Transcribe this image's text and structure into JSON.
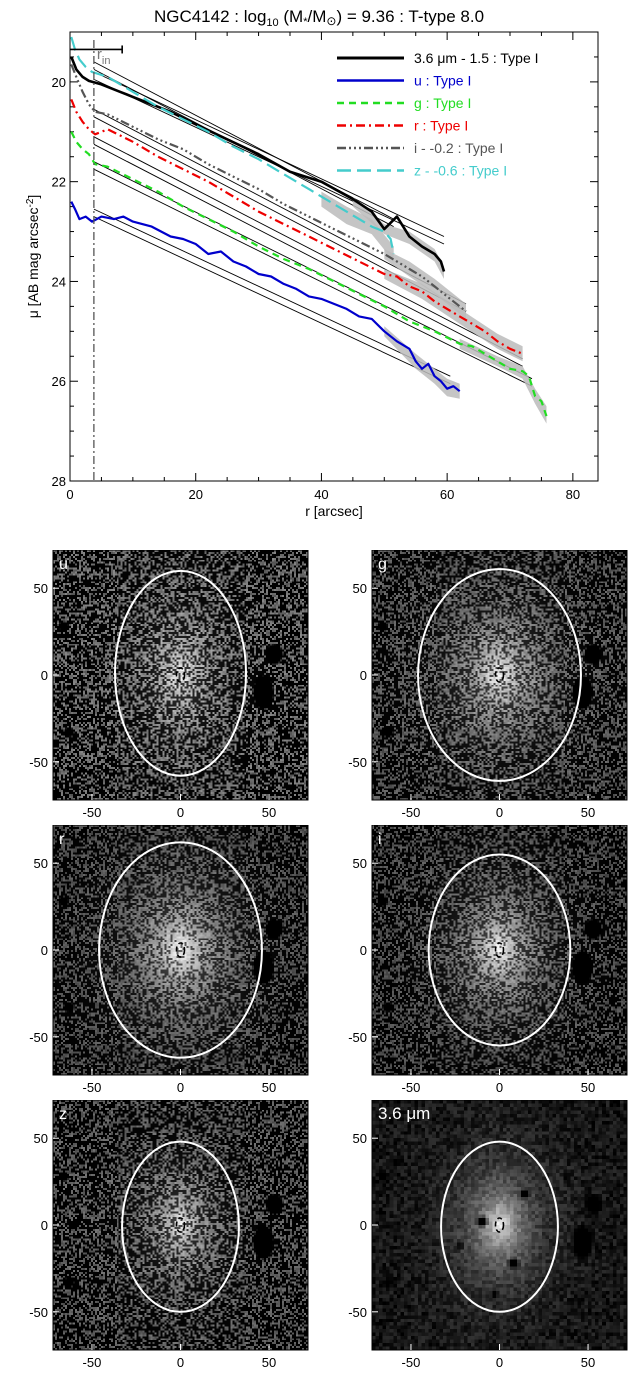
{
  "chart_data": [
    {
      "type": "line",
      "title_parts": [
        "NGC4142 : log",
        "10",
        " (M",
        "*",
        "/M",
        "⊙",
        ") = 9.36 : T-type 8.0"
      ],
      "xlabel": "r [arcsec]",
      "ylabel_parts": [
        "μ [AB mag arcsec",
        "-2",
        "]"
      ],
      "xlim": [
        0,
        84
      ],
      "ylim": [
        28,
        19
      ],
      "xticks": [
        0,
        20,
        40,
        60,
        80
      ],
      "yticks": [
        20,
        22,
        24,
        26,
        28
      ],
      "legend": "top-right",
      "r_in": {
        "label_main": "r",
        "label_sub": "in",
        "value": 3.8
      },
      "scale_bar": {
        "x": [
          0,
          8.3
        ],
        "y": 19.35
      },
      "series": [
        {
          "name": "3.6 μm - 1.5 : Type I",
          "color": "#000000",
          "dash": "",
          "width": 2.6,
          "points": [
            [
              0.2,
              19.5
            ],
            [
              1,
              19.75
            ],
            [
              2,
              19.9
            ],
            [
              3,
              19.98
            ],
            [
              5,
              20.05
            ],
            [
              8,
              20.2
            ],
            [
              10,
              20.3
            ],
            [
              13,
              20.45
            ],
            [
              16,
              20.6
            ],
            [
              20,
              20.85
            ],
            [
              25,
              21.15
            ],
            [
              30,
              21.45
            ],
            [
              35,
              21.8
            ],
            [
              40,
              22.0
            ],
            [
              45,
              22.35
            ],
            [
              48,
              22.6
            ],
            [
              50,
              22.95
            ],
            [
              52,
              22.7
            ],
            [
              54,
              23.1
            ],
            [
              56,
              23.3
            ],
            [
              58,
              23.45
            ],
            [
              59,
              23.6
            ],
            [
              59.5,
              23.8
            ]
          ],
          "band": [
            [
              45,
              22.3,
              22.5
            ],
            [
              50,
              22.85,
              23.05
            ],
            [
              54,
              23.0,
              23.25
            ],
            [
              58,
              23.35,
              23.6
            ],
            [
              59.5,
              23.7,
              23.95
            ]
          ],
          "fits": [
            [
              [
                3.8,
                19.8
              ],
              [
                59.5,
                23.1
              ]
            ],
            [
              [
                3.8,
                19.95
              ],
              [
                59.5,
                23.25
              ]
            ]
          ]
        },
        {
          "name": "u : Type I",
          "color": "#0000cc",
          "dash": "",
          "width": 2.2,
          "points": [
            [
              0.2,
              22.4
            ],
            [
              0.8,
              22.55
            ],
            [
              1.5,
              22.75
            ],
            [
              2.5,
              22.7
            ],
            [
              3.5,
              22.8
            ],
            [
              5,
              22.7
            ],
            [
              7,
              22.75
            ],
            [
              8.5,
              22.7
            ],
            [
              10,
              22.8
            ],
            [
              13,
              22.9
            ],
            [
              16,
              23.1
            ],
            [
              18,
              23.15
            ],
            [
              20,
              23.25
            ],
            [
              22,
              23.45
            ],
            [
              24,
              23.4
            ],
            [
              26,
              23.6
            ],
            [
              28,
              23.7
            ],
            [
              30,
              23.85
            ],
            [
              32,
              23.9
            ],
            [
              34,
              24.05
            ],
            [
              36,
              24.15
            ],
            [
              38,
              24.3
            ],
            [
              40,
              24.35
            ],
            [
              42,
              24.45
            ],
            [
              44,
              24.55
            ],
            [
              46,
              24.7
            ],
            [
              48,
              24.75
            ],
            [
              50,
              25.0
            ],
            [
              52,
              25.2
            ],
            [
              54,
              25.35
            ],
            [
              55,
              25.6
            ],
            [
              56,
              25.75
            ],
            [
              57,
              25.65
            ],
            [
              58,
              25.9
            ],
            [
              59,
              26.0
            ],
            [
              60,
              26.15
            ],
            [
              61,
              26.1
            ],
            [
              62,
              26.2
            ]
          ],
          "band": [
            [
              50,
              24.9,
              25.1
            ],
            [
              55,
              25.45,
              25.75
            ],
            [
              58,
              25.75,
              26.05
            ],
            [
              60,
              25.95,
              26.3
            ],
            [
              62,
              26.05,
              26.35
            ]
          ],
          "fits": [
            [
              [
                3.8,
                22.55
              ],
              [
                60.5,
                25.9
              ]
            ],
            [
              [
                3.8,
                22.7
              ],
              [
                60.5,
                26.05
              ]
            ]
          ]
        },
        {
          "name": "g : Type I",
          "color": "#22dd22",
          "dash": "7,5",
          "width": 2.2,
          "points": [
            [
              0.2,
              21.0
            ],
            [
              1,
              21.2
            ],
            [
              2,
              21.35
            ],
            [
              3,
              21.45
            ],
            [
              4,
              21.65
            ],
            [
              6,
              21.7
            ],
            [
              10,
              21.95
            ],
            [
              14,
              22.2
            ],
            [
              18,
              22.5
            ],
            [
              22,
              22.75
            ],
            [
              26,
              23.0
            ],
            [
              30,
              23.3
            ],
            [
              34,
              23.55
            ],
            [
              38,
              23.75
            ],
            [
              42,
              24.0
            ],
            [
              46,
              24.25
            ],
            [
              50,
              24.5
            ],
            [
              54,
              24.8
            ],
            [
              58,
              25.0
            ],
            [
              62,
              25.25
            ],
            [
              64,
              25.3
            ],
            [
              66,
              25.45
            ],
            [
              68,
              25.6
            ],
            [
              70,
              25.75
            ],
            [
              72,
              25.8
            ],
            [
              73,
              25.9
            ],
            [
              74,
              26.3
            ],
            [
              75,
              26.4
            ],
            [
              75.8,
              26.7
            ]
          ],
          "band": [
            [
              62,
              25.15,
              25.35
            ],
            [
              68,
              25.5,
              25.7
            ],
            [
              72,
              25.7,
              25.95
            ],
            [
              74,
              26.15,
              26.45
            ],
            [
              75.8,
              26.5,
              26.85
            ]
          ],
          "fits": [
            [
              [
                3.8,
                21.6
              ],
              [
                73.5,
                25.95
              ]
            ],
            [
              [
                3.8,
                21.75
              ],
              [
                73.5,
                26.1
              ]
            ]
          ]
        },
        {
          "name": "r : Type I",
          "color": "#ee0000",
          "dash": "9,4,2,4",
          "width": 2.2,
          "points": [
            [
              0.2,
              20.35
            ],
            [
              1,
              20.6
            ],
            [
              2,
              20.8
            ],
            [
              3,
              20.95
            ],
            [
              4,
              21.05
            ],
            [
              6,
              20.95
            ],
            [
              10,
              21.2
            ],
            [
              14,
              21.5
            ],
            [
              18,
              21.75
            ],
            [
              22,
              22.0
            ],
            [
              26,
              22.3
            ],
            [
              30,
              22.6
            ],
            [
              34,
              22.85
            ],
            [
              38,
              23.1
            ],
            [
              42,
              23.35
            ],
            [
              46,
              23.6
            ],
            [
              50,
              23.85
            ],
            [
              52,
              23.9
            ],
            [
              54,
              24.1
            ],
            [
              56,
              24.2
            ],
            [
              58,
              24.4
            ],
            [
              60,
              24.55
            ],
            [
              62,
              24.7
            ],
            [
              64,
              24.85
            ],
            [
              66,
              25.0
            ],
            [
              68,
              25.2
            ],
            [
              70,
              25.35
            ],
            [
              72,
              25.45
            ]
          ],
          "band": [
            [
              50,
              23.75,
              23.95
            ],
            [
              56,
              24.05,
              24.35
            ],
            [
              62,
              24.55,
              24.85
            ],
            [
              68,
              25.05,
              25.35
            ],
            [
              72,
              25.3,
              25.6
            ]
          ],
          "fits": [
            [
              [
                3.8,
                21.1
              ],
              [
                72,
                25.55
              ]
            ],
            [
              [
                3.8,
                21.25
              ],
              [
                72,
                25.7
              ]
            ]
          ]
        },
        {
          "name": "i - -0.2 : Type I",
          "color": "#555555",
          "dash": "9,3,2,3,2,3,2,3",
          "width": 2.2,
          "points": [
            [
              0.2,
              19.65
            ],
            [
              1,
              19.9
            ],
            [
              2,
              20.2
            ],
            [
              3,
              20.45
            ],
            [
              4,
              20.6
            ],
            [
              6,
              20.65
            ],
            [
              10,
              20.9
            ],
            [
              14,
              21.15
            ],
            [
              18,
              21.35
            ],
            [
              22,
              21.65
            ],
            [
              26,
              21.9
            ],
            [
              30,
              22.15
            ],
            [
              34,
              22.45
            ],
            [
              38,
              22.7
            ],
            [
              42,
              22.95
            ],
            [
              46,
              23.2
            ],
            [
              50,
              23.45
            ],
            [
              52,
              23.6
            ],
            [
              54,
              23.75
            ],
            [
              56,
              23.9
            ],
            [
              58,
              24.1
            ],
            [
              60,
              24.3
            ],
            [
              62,
              24.5
            ],
            [
              63,
              24.6
            ]
          ],
          "band": [
            [
              50,
              23.35,
              23.55
            ],
            [
              54,
              23.6,
              23.9
            ],
            [
              58,
              23.95,
              24.25
            ],
            [
              62,
              24.35,
              24.65
            ],
            [
              63,
              24.45,
              24.75
            ]
          ],
          "fits": [
            [
              [
                3.8,
                20.55
              ],
              [
                63,
                24.45
              ]
            ],
            [
              [
                3.8,
                20.7
              ],
              [
                63,
                24.6
              ]
            ]
          ]
        },
        {
          "name": "z - -0.6 : Type I",
          "color": "#44cccc",
          "dash": "14,6",
          "width": 2.2,
          "points": [
            [
              0.2,
              19.1
            ],
            [
              0.8,
              19.35
            ],
            [
              1.5,
              19.55
            ],
            [
              2.5,
              19.7
            ],
            [
              3.5,
              19.8
            ],
            [
              6,
              19.9
            ],
            [
              10,
              20.2
            ],
            [
              14,
              20.5
            ],
            [
              18,
              20.75
            ],
            [
              22,
              21.0
            ],
            [
              26,
              21.3
            ],
            [
              30,
              21.55
            ],
            [
              34,
              21.85
            ],
            [
              38,
              22.15
            ],
            [
              42,
              22.45
            ],
            [
              46,
              22.75
            ],
            [
              48,
              22.9
            ],
            [
              50,
              23.0
            ],
            [
              51,
              23.15
            ],
            [
              51.5,
              23.45
            ]
          ],
          "band": [
            [
              40,
              22.2,
              22.5
            ],
            [
              44,
              22.5,
              22.85
            ],
            [
              48,
              22.75,
              23.05
            ],
            [
              51.5,
              23.3,
              23.6
            ]
          ],
          "fits": [
            [
              [
                3.8,
                19.6
              ],
              [
                51.5,
                22.75
              ]
            ],
            [
              [
                3.8,
                19.75
              ],
              [
                51.5,
                22.9
              ]
            ]
          ]
        }
      ]
    }
  ],
  "panels": [
    {
      "label": "u",
      "label_color": "#ffffff",
      "noise": 0.7,
      "bright": 0.55,
      "ellipse_rx": 37,
      "ellipse_ry": 59,
      "ellipse_cx": 0,
      "ellipse_cy": 1,
      "style": "noise",
      "seed": 11
    },
    {
      "label": "g",
      "label_color": "#ffffff",
      "noise": 0.55,
      "bright": 0.75,
      "ellipse_rx": 46,
      "ellipse_ry": 61,
      "ellipse_cx": 0,
      "ellipse_cy": 0,
      "style": "noise",
      "seed": 23
    },
    {
      "label": "r",
      "label_color": "#ffffff",
      "noise": 0.5,
      "bright": 0.85,
      "ellipse_rx": 46,
      "ellipse_ry": 62,
      "ellipse_cx": 0,
      "ellipse_cy": 0,
      "style": "noise",
      "seed": 37
    },
    {
      "label": "i",
      "label_color": "#ffffff",
      "noise": 0.5,
      "bright": 0.85,
      "ellipse_rx": 40,
      "ellipse_ry": 55,
      "ellipse_cx": 0,
      "ellipse_cy": 0,
      "style": "noise",
      "seed": 41
    },
    {
      "label": "z",
      "label_color": "#ffffff",
      "noise": 0.6,
      "bright": 0.65,
      "ellipse_rx": 33,
      "ellipse_ry": 49,
      "ellipse_cx": 0,
      "ellipse_cy": -1,
      "style": "noise",
      "seed": 53
    },
    {
      "label": "3.6 μm",
      "label_color": "#ffffff",
      "noise": 0.4,
      "bright": 0.9,
      "ellipse_rx": 33,
      "ellipse_ry": 49,
      "ellipse_cx": 0,
      "ellipse_cy": -1,
      "style": "smooth",
      "seed": 67
    }
  ],
  "panel_axes": {
    "xticks": [
      -50,
      0,
      50
    ],
    "yticks": [
      50,
      0,
      -50
    ],
    "range": [
      -72,
      72
    ]
  }
}
